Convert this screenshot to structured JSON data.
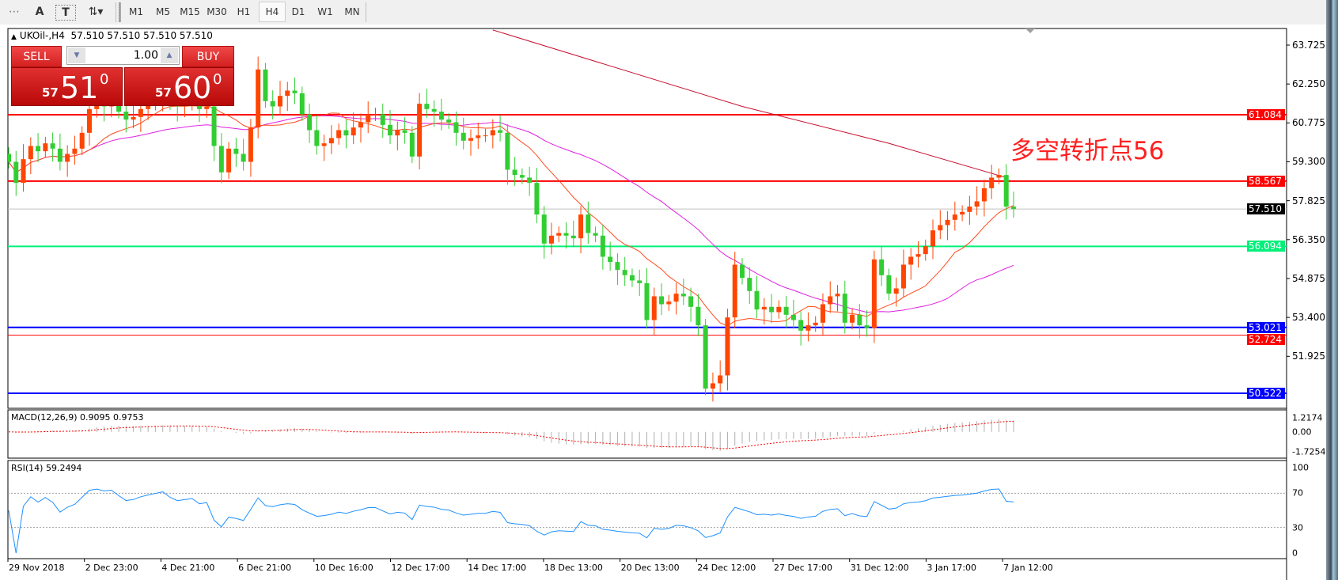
{
  "toolbar": {
    "tools": [
      {
        "name": "grid-f-icon",
        "glyph": "⋯"
      },
      {
        "name": "text-a-icon",
        "glyph": "A"
      },
      {
        "name": "text-label-icon",
        "glyph": "T"
      },
      {
        "name": "arrows-icon",
        "glyph": "⇅▾"
      }
    ],
    "timeframes": [
      "M1",
      "M5",
      "M15",
      "M30",
      "H1",
      "H4",
      "D1",
      "W1",
      "MN"
    ],
    "selected_timeframe": "H4"
  },
  "chart": {
    "title": "UKOil-,H4",
    "ohlc_text": "57.510 57.510 57.510 57.510",
    "annotation": "多空转折点56",
    "colors": {
      "up": "#ff4500",
      "down": "#32cd32",
      "ma_fast": "#ff4a1c",
      "ma_mid": "#e020e0",
      "ma_slow": "#c8102e"
    }
  },
  "trade_panel": {
    "sell_label": "SELL",
    "buy_label": "BUY",
    "lot": "1.00",
    "sell_price": {
      "big_figure": "57",
      "pips": "51",
      "fraction": "0"
    },
    "buy_price": {
      "big_figure": "57",
      "pips": "60",
      "fraction": "0"
    }
  },
  "price_axis": {
    "ticks": [
      "63.725",
      "62.250",
      "60.775",
      "59.300",
      "57.825",
      "56.350",
      "54.875",
      "53.400",
      "51.925"
    ],
    "range": [
      50.3,
      64.3
    ]
  },
  "levels": [
    {
      "value": "61.084",
      "color": "#ff0000",
      "width": 2
    },
    {
      "value": "58.567",
      "color": "#ff0000",
      "width": 2
    },
    {
      "value": "57.510",
      "color": "#000000",
      "width": 1,
      "line_color": "#c0c0c0"
    },
    {
      "value": "56.094",
      "color": "#00f07a",
      "width": 2
    },
    {
      "value": "53.021",
      "color": "#0000ff",
      "width": 2
    },
    {
      "value": "52.724",
      "color": "#ff0000",
      "width": 1
    },
    {
      "value": "50.522",
      "color": "#0000ff",
      "width": 2
    }
  ],
  "candles": {
    "closes": [
      59.3,
      58.5,
      59.4,
      59.9,
      59.7,
      60.0,
      59.8,
      59.3,
      59.6,
      59.8,
      60.4,
      61.3,
      61.5,
      61.4,
      61.5,
      61.2,
      60.9,
      61.0,
      61.3,
      61.5,
      61.7,
      61.9,
      61.6,
      61.4,
      61.5,
      61.6,
      61.3,
      61.4,
      59.9,
      58.9,
      59.8,
      59.6,
      59.3,
      60.6,
      62.8,
      61.6,
      61.4,
      61.8,
      62.0,
      61.9,
      61.1,
      60.5,
      59.9,
      60.0,
      60.2,
      60.5,
      60.3,
      60.6,
      60.8,
      61.1,
      61.1,
      60.7,
      60.3,
      60.5,
      60.4,
      59.5,
      61.5,
      61.3,
      61.2,
      60.9,
      60.8,
      60.4,
      60.1,
      60.2,
      60.3,
      60.3,
      60.5,
      60.4,
      59.0,
      58.8,
      58.7,
      58.5,
      57.3,
      56.2,
      56.5,
      56.6,
      56.5,
      56.4,
      57.3,
      56.6,
      56.5,
      55.7,
      55.5,
      55.2,
      55.0,
      54.8,
      54.7,
      53.3,
      54.2,
      53.9,
      54.0,
      54.3,
      54.2,
      53.8,
      53.1,
      50.7,
      50.9,
      51.2,
      53.4,
      55.4,
      54.9,
      54.4,
      53.7,
      53.8,
      53.6,
      53.8,
      53.5,
      53.3,
      52.9,
      53.1,
      53.2,
      53.9,
      54.2,
      54.3,
      53.2,
      53.5,
      53.1,
      53.0,
      55.6,
      55.0,
      54.3,
      54.5,
      55.4,
      55.7,
      55.8,
      56.1,
      56.7,
      56.9,
      57.1,
      57.3,
      57.4,
      57.6,
      57.8,
      58.3,
      58.7,
      58.8,
      57.6,
      57.51
    ],
    "slow_ma_points": [
      [
        66,
        64.3
      ],
      [
        100,
        61.4
      ],
      [
        120,
        60.0
      ],
      [
        136,
        58.7
      ]
    ]
  },
  "macd": {
    "title": "MACD(12,26,9) 0.9095 0.9753",
    "ticks": [
      "1.2174",
      "0.00",
      "-1.7254"
    ],
    "range": [
      -1.7254,
      1.2174
    ]
  },
  "rsi": {
    "title": "RSI(14) 59.2494",
    "ticks": [
      "100",
      "70",
      "30",
      "0"
    ],
    "levels": [
      30,
      70
    ]
  },
  "time_axis": [
    "29 Nov 2018",
    "2 Dec 23:00",
    "4 Dec 21:00",
    "6 Dec 21:00",
    "10 Dec 16:00",
    "12 Dec 17:00",
    "14 Dec 17:00",
    "18 Dec 13:00",
    "20 Dec 13:00",
    "24 Dec 12:00",
    "27 Dec 17:00",
    "31 Dec 12:00",
    "3 Jan 17:00",
    "7 Jan 12:00"
  ]
}
